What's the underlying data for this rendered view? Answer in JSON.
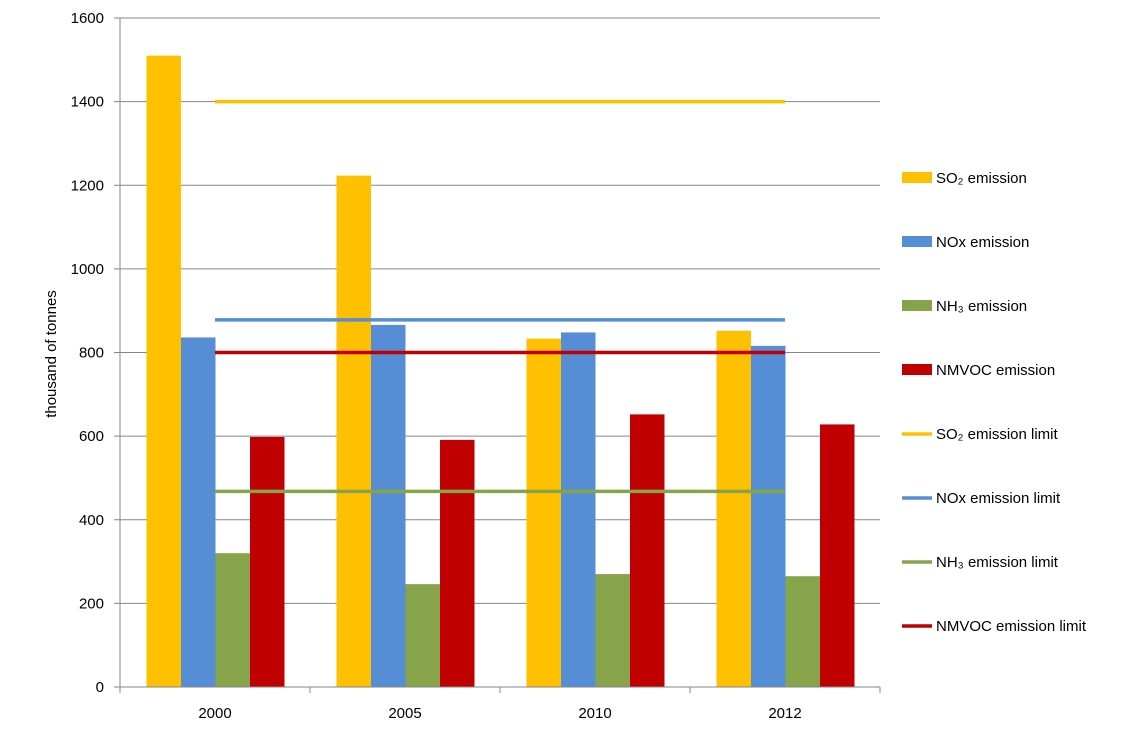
{
  "chart_data": {
    "type": "bar",
    "categories": [
      "2000",
      "2005",
      "2010",
      "2012"
    ],
    "ylabel": "thousand of tonnes",
    "xlabel": "",
    "ylim": [
      0,
      1600
    ],
    "yticks": [
      0,
      200,
      400,
      600,
      800,
      1000,
      1200,
      1400,
      1600
    ],
    "grid": "horizontal",
    "legend_position": "right",
    "series": [
      {
        "name": "SO₂ emission",
        "kind": "bar",
        "color": "#FFC000",
        "values": [
          1510,
          1223,
          833,
          852
        ]
      },
      {
        "name": "NOx emission",
        "kind": "bar",
        "color": "#558ED5",
        "values": [
          836,
          866,
          848,
          816
        ]
      },
      {
        "name": "NH₃ emission",
        "kind": "bar",
        "color": "#86A44A",
        "values": [
          320,
          246,
          270,
          265
        ]
      },
      {
        "name": "NMVOC emission",
        "kind": "bar",
        "color": "#C00000",
        "values": [
          598,
          591,
          652,
          628
        ]
      },
      {
        "name": "SO₂ emission limit",
        "kind": "line",
        "color": "#FFC000",
        "values": [
          1400,
          1400,
          1400,
          1400
        ]
      },
      {
        "name": "NOx emission limit",
        "kind": "line",
        "color": "#558ED5",
        "values": [
          878,
          878,
          878,
          878
        ]
      },
      {
        "name": "NH₃ emission limit",
        "kind": "line",
        "color": "#86A44A",
        "values": [
          468,
          468,
          468,
          468
        ]
      },
      {
        "name": "NMVOC emission limit",
        "kind": "line",
        "color": "#C00000",
        "values": [
          800,
          800,
          800,
          800
        ]
      }
    ]
  }
}
